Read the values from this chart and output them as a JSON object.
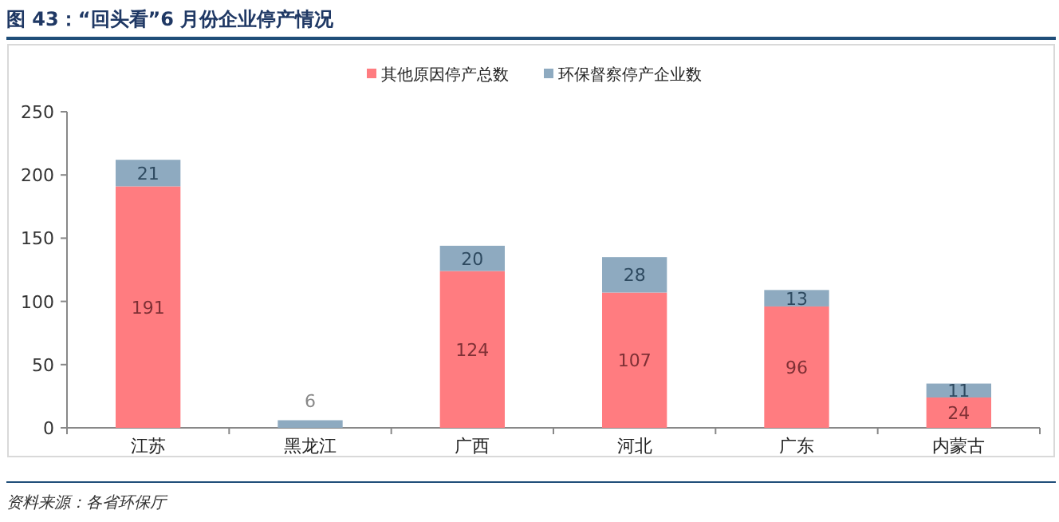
{
  "chart_data": {
    "type": "bar",
    "stacked": true,
    "title": "图 43：“回头看”6 月份企业停产情况",
    "categories": [
      "江苏",
      "黑龙江",
      "广西",
      "河北",
      "广东",
      "内蒙古"
    ],
    "series": [
      {
        "name": "其他原因停产总数",
        "color": "#ff7c80",
        "values": [
          191,
          0,
          124,
          107,
          96,
          24
        ],
        "value_labels": [
          "191",
          null,
          "124",
          "107",
          "96",
          "24"
        ]
      },
      {
        "name": "环保督察停产企业数",
        "color": "#8eaac0",
        "values": [
          21,
          6,
          20,
          28,
          13,
          11
        ],
        "value_labels": [
          "21",
          "6",
          "20",
          "28",
          "13",
          "11"
        ]
      }
    ],
    "ylim": [
      0,
      250
    ],
    "yticks": [
      0,
      50,
      100,
      150,
      200,
      250
    ],
    "legend": "top",
    "annotations": [
      "资料来源：各省环保厅"
    ]
  }
}
